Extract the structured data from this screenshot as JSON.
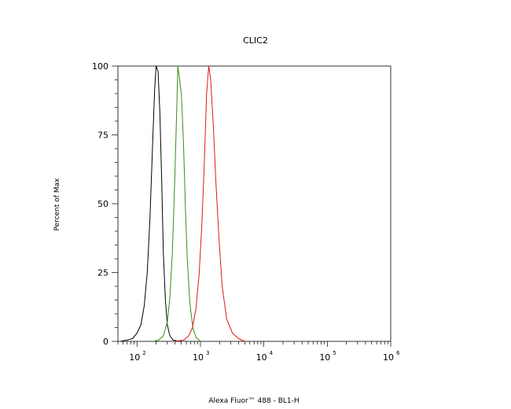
{
  "chart_data": {
    "type": "line",
    "title": "CLIC2",
    "xlabel": "Alexa Fluor™ 488 - BL1-H",
    "ylabel": "Percent of Max",
    "x_scale": "log",
    "xlim": [
      50,
      1000000
    ],
    "ylim": [
      0,
      100
    ],
    "yticks": [
      0,
      25,
      50,
      75,
      100
    ],
    "ytick_labels": [
      "0",
      "25",
      "50",
      "75",
      "100"
    ],
    "xticks": [
      {
        "value": 100,
        "base": "10",
        "exp": "2"
      },
      {
        "value": 1000,
        "base": "10",
        "exp": "3"
      },
      {
        "value": 10000,
        "base": "10",
        "exp": "4"
      },
      {
        "value": 100000,
        "base": "10",
        "exp": "5"
      },
      {
        "value": 1000000,
        "base": "10",
        "exp": "6"
      }
    ],
    "grid": false,
    "legend": "none",
    "series": [
      {
        "color": "#000000",
        "x": [
          55,
          70,
          85,
          100,
          115,
          130,
          145,
          160,
          175,
          190,
          200,
          215,
          230,
          245,
          260,
          280,
          300,
          330,
          370,
          420,
          500
        ],
        "y": [
          0,
          0.5,
          1,
          3,
          6,
          13,
          25,
          45,
          70,
          92,
          100,
          98,
          82,
          58,
          32,
          15,
          6,
          2,
          0.5,
          0.2,
          0
        ]
      },
      {
        "color": "#3c8c14",
        "x": [
          180,
          220,
          260,
          300,
          330,
          360,
          390,
          420,
          440,
          470,
          500,
          540,
          580,
          620,
          680,
          760,
          850,
          1000
        ],
        "y": [
          0,
          0.5,
          2,
          7,
          16,
          32,
          56,
          82,
          100,
          95,
          90,
          72,
          48,
          30,
          14,
          5,
          1.5,
          0
        ]
      },
      {
        "color": "#e01818",
        "x": [
          400,
          550,
          650,
          750,
          850,
          950,
          1050,
          1150,
          1250,
          1350,
          1450,
          1600,
          1750,
          1950,
          2200,
          2600,
          3200,
          4000,
          5000
        ],
        "y": [
          0,
          0.5,
          2,
          5,
          12,
          24,
          42,
          65,
          90,
          100,
          95,
          78,
          58,
          38,
          20,
          8,
          3,
          1,
          0
        ]
      }
    ]
  }
}
